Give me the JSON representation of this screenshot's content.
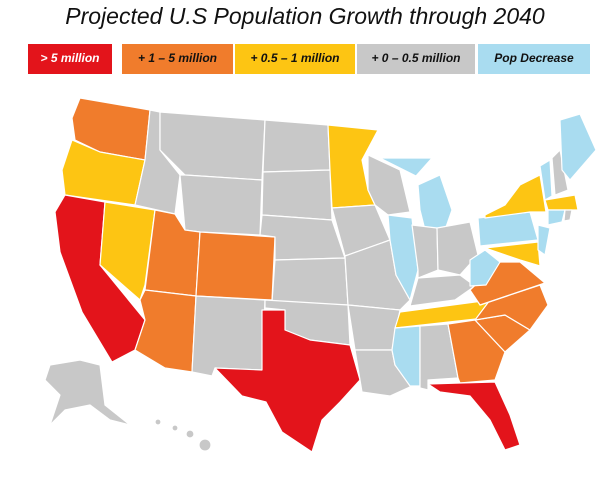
{
  "title": "Projected U.S Population Growth through 2040",
  "legend": [
    {
      "label": "> 5 million",
      "color": "#e3141b"
    },
    {
      "label": "+ 1 – 5 million",
      "color": "#f07c2c"
    },
    {
      "label": "+ 0.5 – 1 million",
      "color": "#fdc513"
    },
    {
      "label": "+ 0 – 0.5 million",
      "color": "#c8c8c8"
    },
    {
      "label": "Pop Decrease",
      "color": "#a9dcf0"
    }
  ]
}
